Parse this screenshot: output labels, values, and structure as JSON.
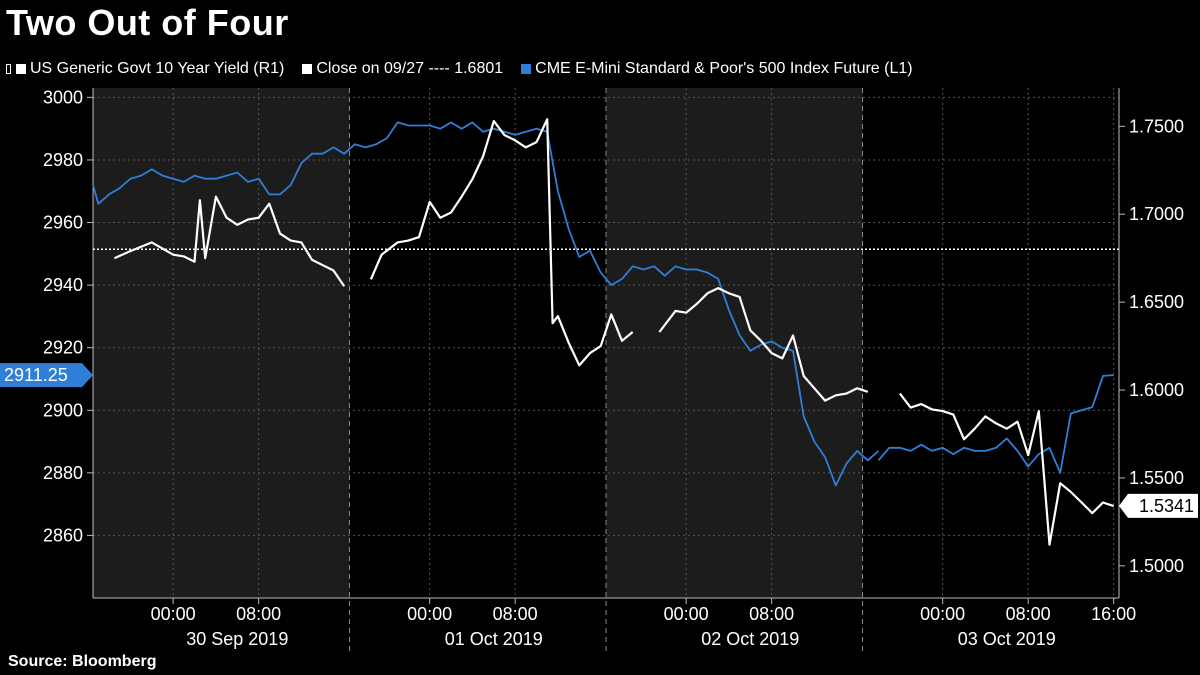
{
  "title": "Two Out of Four",
  "source": "Source: Bloomberg",
  "legend": {
    "yield": "US Generic Govt 10 Year Yield  (R1)",
    "close": "Close on 09/27 ---- 1.6801",
    "spx": "CME E-Mini Standard & Poor's 500 Index Future  (L1)"
  },
  "colors": {
    "yield": "#ffffff",
    "spx": "#2f7fd8",
    "shade": "#1c1c1c",
    "background": "#000000"
  },
  "chart_data": {
    "type": "line",
    "x_unit": "hours since 30 Sep 2019 00:00",
    "x_range": [
      -7.5,
      88.5
    ],
    "left_axis": {
      "label": "L1",
      "ylim": [
        2840,
        3003
      ],
      "ticks": [
        2860,
        2880,
        2900,
        2920,
        2940,
        2960,
        2980,
        3000
      ]
    },
    "right_axis": {
      "label": "R1",
      "ylim": [
        1.4817,
        1.7718
      ],
      "ticks": [
        "1.5000",
        "1.5500",
        "1.6000",
        "1.6500",
        "1.7000",
        "1.7500"
      ]
    },
    "x_ticks": [
      {
        "x": 0,
        "label": "00:00"
      },
      {
        "x": 8,
        "label": "08:00"
      },
      {
        "x": 24,
        "label": "00:00"
      },
      {
        "x": 32,
        "label": "08:00"
      },
      {
        "x": 48,
        "label": "00:00"
      },
      {
        "x": 56,
        "label": "08:00"
      },
      {
        "x": 72,
        "label": "00:00"
      },
      {
        "x": 80,
        "label": "08:00"
      },
      {
        "x": 88,
        "label": "16:00"
      }
    ],
    "date_labels": [
      {
        "x": 6,
        "label": "30 Sep 2019"
      },
      {
        "x": 30,
        "label": "01 Oct 2019"
      },
      {
        "x": 54,
        "label": "02 Oct 2019"
      },
      {
        "x": 78,
        "label": "03 Oct 2019"
      }
    ],
    "shaded_ranges": [
      [
        -7.5,
        16.5
      ],
      [
        40.5,
        64.5
      ]
    ],
    "reference_line": {
      "name": "Close on 09/27",
      "axis": "right",
      "value": 1.6801
    },
    "last_value_labels": [
      {
        "axis": "left",
        "text": "2911.25",
        "value": 2911.25
      },
      {
        "axis": "right",
        "text": "1.5341",
        "value": 1.5341
      }
    ],
    "series": [
      {
        "name": "CME E-Mini Standard & Poor's 500 Index Future",
        "axis": "left",
        "color": "#2f7fd8",
        "segments": [
          [
            [
              -7.5,
              2972
            ],
            [
              -7,
              2966
            ],
            [
              -6,
              2969
            ],
            [
              -5,
              2971
            ],
            [
              -4,
              2974
            ],
            [
              -3,
              2975
            ],
            [
              -2,
              2977
            ],
            [
              -1,
              2975
            ],
            [
              0,
              2974
            ],
            [
              1,
              2973
            ],
            [
              2,
              2975
            ],
            [
              3,
              2974
            ],
            [
              4,
              2974
            ],
            [
              5,
              2975
            ],
            [
              6,
              2976
            ],
            [
              7,
              2973
            ],
            [
              8,
              2974
            ],
            [
              9,
              2969
            ],
            [
              10,
              2969
            ],
            [
              11,
              2972
            ],
            [
              12,
              2979
            ],
            [
              13,
              2982
            ],
            [
              14,
              2982
            ],
            [
              15,
              2984
            ],
            [
              16,
              2982
            ],
            [
              17,
              2985
            ],
            [
              18,
              2984
            ],
            [
              19,
              2985
            ],
            [
              20,
              2987
            ],
            [
              21,
              2992
            ],
            [
              22,
              2991
            ],
            [
              23,
              2991
            ],
            [
              24,
              2991
            ],
            [
              25,
              2990
            ],
            [
              26,
              2992
            ],
            [
              27,
              2990
            ],
            [
              28,
              2992
            ],
            [
              29,
              2989
            ],
            [
              30,
              2990
            ],
            [
              31,
              2989
            ],
            [
              32,
              2988
            ],
            [
              33,
              2989
            ],
            [
              34,
              2990
            ],
            [
              35,
              2989
            ],
            [
              36,
              2970
            ],
            [
              37,
              2958
            ],
            [
              38,
              2949
            ],
            [
              39,
              2951
            ],
            [
              40,
              2944
            ],
            [
              41,
              2940
            ],
            [
              42,
              2942
            ],
            [
              43,
              2946
            ],
            [
              44,
              2945
            ],
            [
              45,
              2946
            ],
            [
              46,
              2943
            ],
            [
              47,
              2946
            ],
            [
              48,
              2945
            ],
            [
              49,
              2945
            ],
            [
              50,
              2944
            ],
            [
              51,
              2942
            ],
            [
              52,
              2932
            ],
            [
              53,
              2924
            ],
            [
              54,
              2919
            ],
            [
              55,
              2921
            ],
            [
              56,
              2922
            ],
            [
              57,
              2920
            ],
            [
              58,
              2919
            ],
            [
              59,
              2898
            ],
            [
              60,
              2890
            ],
            [
              61,
              2885
            ],
            [
              62,
              2876
            ],
            [
              63,
              2883
            ],
            [
              64,
              2887
            ],
            [
              65,
              2884
            ],
            [
              66,
              2887
            ]
          ],
          [
            [
              66,
              2884
            ],
            [
              67,
              2888
            ],
            [
              68,
              2888
            ],
            [
              69,
              2887
            ],
            [
              70,
              2889
            ],
            [
              71,
              2887
            ],
            [
              72,
              2888
            ],
            [
              73,
              2886
            ],
            [
              74,
              2888
            ],
            [
              75,
              2887
            ],
            [
              76,
              2887
            ],
            [
              77,
              2888
            ],
            [
              78,
              2891
            ],
            [
              79,
              2887
            ],
            [
              80,
              2882
            ],
            [
              81,
              2886
            ],
            [
              82,
              2888
            ],
            [
              83,
              2880
            ],
            [
              84,
              2899
            ],
            [
              85,
              2900
            ],
            [
              86,
              2901
            ],
            [
              87,
              2911
            ],
            [
              88,
              2911.25
            ]
          ]
        ]
      },
      {
        "name": "US Generic Govt 10 Year Yield",
        "axis": "right",
        "color": "#ffffff",
        "segments": [
          [
            [
              -5.5,
              1.675
            ],
            [
              -4,
              1.679
            ],
            [
              -2,
              1.684
            ],
            [
              0,
              1.677
            ],
            [
              1,
              1.676
            ],
            [
              2,
              1.673
            ],
            [
              2.5,
              1.708
            ],
            [
              3,
              1.675
            ],
            [
              4,
              1.71
            ],
            [
              5,
              1.698
            ],
            [
              6,
              1.694
            ],
            [
              7,
              1.697
            ],
            [
              8,
              1.698
            ],
            [
              9,
              1.706
            ],
            [
              10,
              1.689
            ],
            [
              11,
              1.685
            ],
            [
              12,
              1.684
            ],
            [
              13,
              1.674
            ],
            [
              14,
              1.671
            ],
            [
              15,
              1.668
            ],
            [
              16,
              1.659
            ]
          ],
          [
            [
              18.5,
              1.663
            ],
            [
              19.5,
              1.677
            ],
            [
              21,
              1.684
            ],
            [
              22,
              1.685
            ],
            [
              23,
              1.687
            ],
            [
              24,
              1.707
            ],
            [
              25,
              1.698
            ],
            [
              26,
              1.701
            ],
            [
              27,
              1.71
            ],
            [
              28,
              1.72
            ],
            [
              29,
              1.733
            ],
            [
              30,
              1.753
            ],
            [
              31,
              1.745
            ],
            [
              32,
              1.742
            ],
            [
              33,
              1.738
            ],
            [
              34,
              1.741
            ],
            [
              35,
              1.754
            ],
            [
              35.5,
              1.638
            ],
            [
              36,
              1.642
            ],
            [
              37,
              1.627
            ],
            [
              38,
              1.614
            ],
            [
              39,
              1.621
            ],
            [
              40,
              1.625
            ],
            [
              41,
              1.643
            ],
            [
              42,
              1.628
            ],
            [
              43,
              1.633
            ]
          ],
          [
            [
              45.5,
              1.633
            ],
            [
              47,
              1.645
            ],
            [
              48,
              1.644
            ],
            [
              49,
              1.649
            ],
            [
              50,
              1.655
            ],
            [
              51,
              1.658
            ],
            [
              52,
              1.655
            ],
            [
              53,
              1.653
            ],
            [
              54,
              1.634
            ],
            [
              55,
              1.628
            ],
            [
              56,
              1.621
            ],
            [
              57,
              1.618
            ],
            [
              58,
              1.631
            ],
            [
              59,
              1.608
            ],
            [
              60,
              1.601
            ],
            [
              61,
              1.594
            ],
            [
              62,
              1.597
            ],
            [
              63,
              1.598
            ],
            [
              64,
              1.601
            ],
            [
              65,
              1.599
            ]
          ],
          [
            [
              68,
              1.598
            ],
            [
              69,
              1.59
            ],
            [
              70,
              1.592
            ],
            [
              71,
              1.589
            ],
            [
              72,
              1.588
            ],
            [
              73,
              1.586
            ],
            [
              74,
              1.572
            ],
            [
              75,
              1.578
            ],
            [
              76,
              1.585
            ],
            [
              77,
              1.581
            ],
            [
              78,
              1.578
            ],
            [
              79,
              1.582
            ],
            [
              80,
              1.563
            ],
            [
              81,
              1.588
            ],
            [
              82,
              1.512
            ],
            [
              83,
              1.547
            ],
            [
              84,
              1.542
            ],
            [
              85,
              1.536
            ],
            [
              86,
              1.53
            ],
            [
              87,
              1.536
            ],
            [
              88,
              1.534
            ]
          ]
        ]
      }
    ]
  }
}
